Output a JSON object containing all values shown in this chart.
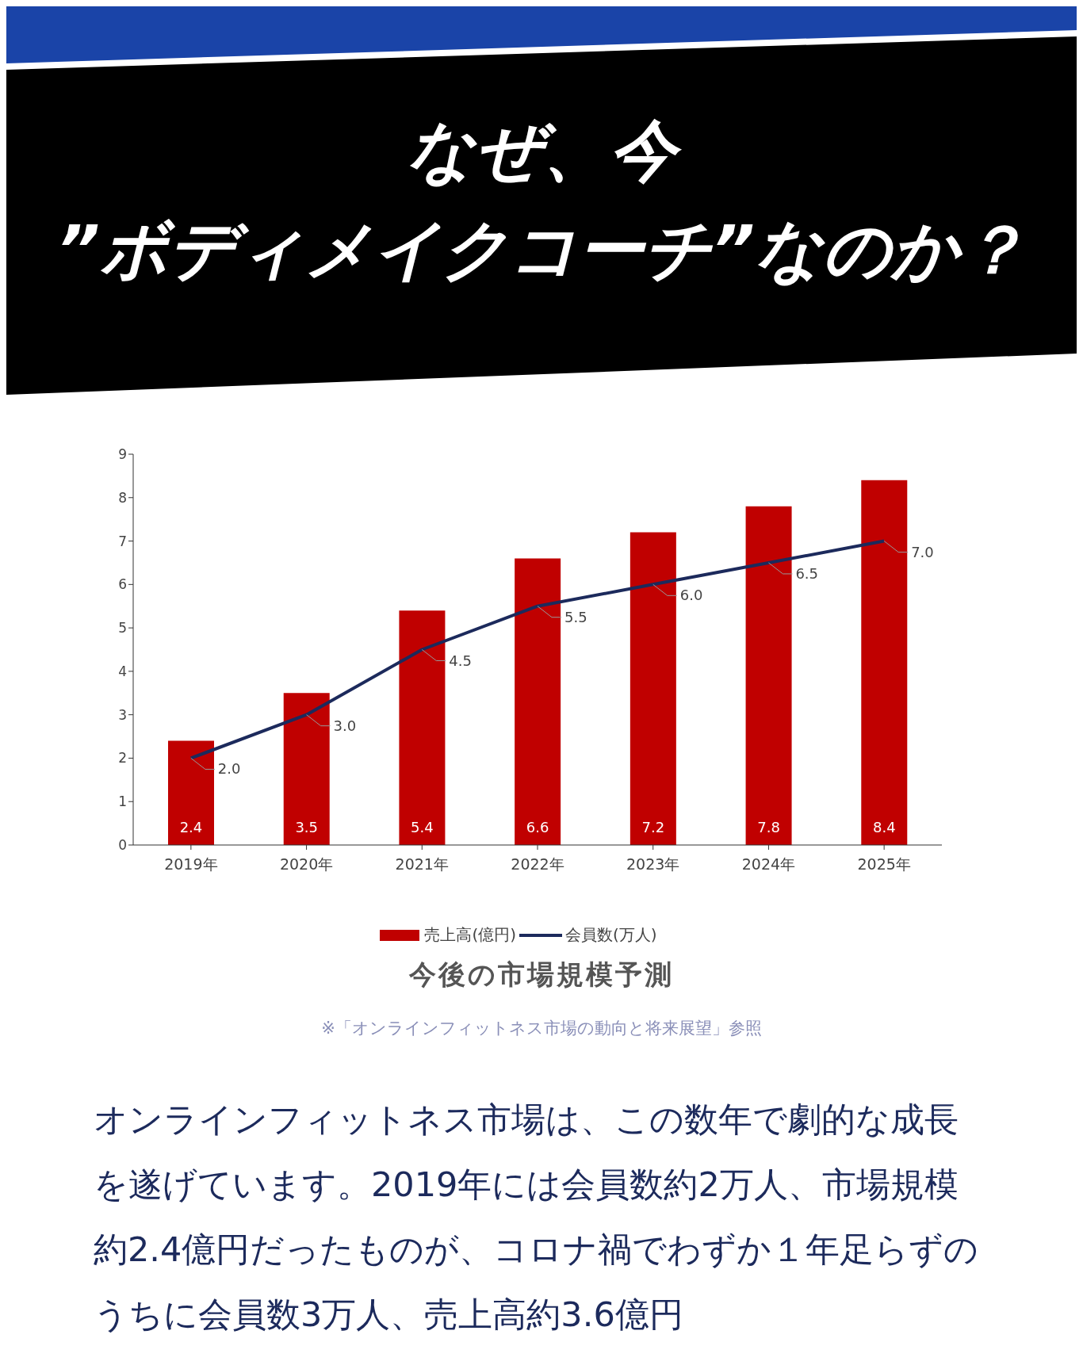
{
  "chart_data": {
    "type": "bar",
    "title": "なぜ、今\n”ボディメイクコーチ”なのか？",
    "categories": [
      "2019年",
      "2020年",
      "2021年",
      "2022年",
      "2023年",
      "2024年",
      "2025年"
    ],
    "series": [
      {
        "name": "売上高(億円)",
        "color": "#c00000",
        "values": [
          2.4,
          3.5,
          5.4,
          6.6,
          7.2,
          7.8,
          8.4
        ],
        "value_labels": [
          "2.4",
          "3.5",
          "5.4",
          "6.6",
          "7.2",
          "7.8",
          "8.4"
        ]
      },
      {
        "name": "会員数(万人)",
        "type": "line",
        "color": "#1c2a5c",
        "values": [
          2.0,
          3.0,
          4.5,
          5.5,
          6.0,
          6.5,
          7.0
        ],
        "value_labels": [
          "2.0",
          "3.0",
          "4.5",
          "5.5",
          "6.0",
          "6.5",
          "7.0"
        ]
      }
    ],
    "ylim": [
      0,
      9
    ],
    "yticks": [
      0,
      1,
      2,
      3,
      4,
      5,
      6,
      7,
      8,
      9
    ],
    "grid": false,
    "legend": "bottom",
    "marker": "none",
    "annotations": [
      "今後の市場規模予測",
      "※「オンラインフィットネス市場の動向と将来展望」参照",
      "オンラインフィットネス市場は、この数年で劇的な成長を遂げています。2019年には会員数約2万人、市場規模約2.4億円だったものが、コロナ禍でわずか１年足らずのうちに会員数3万人、売上高約3.6億円"
    ]
  }
}
